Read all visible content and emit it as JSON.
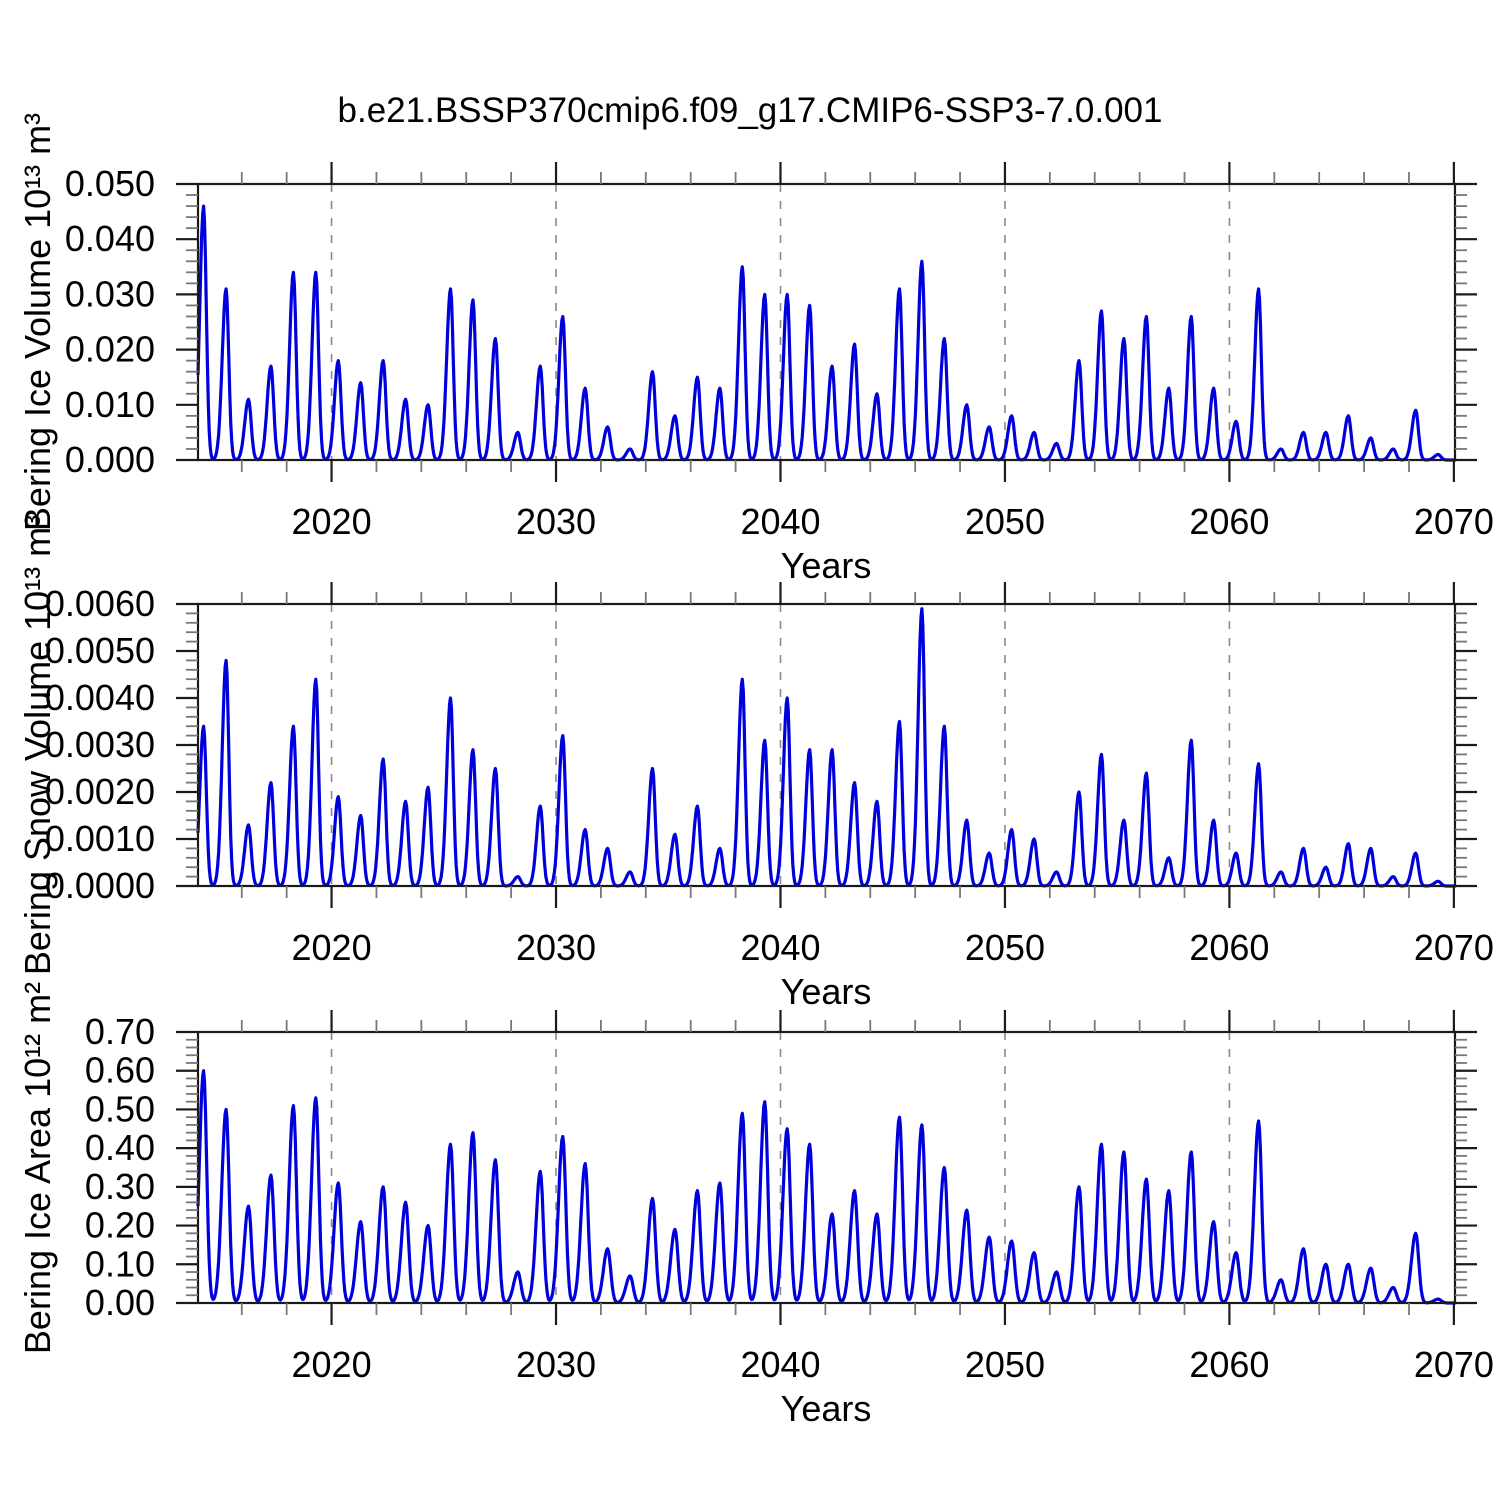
{
  "title": "b.e21.BSSP370cmip6.f09_g17.CMIP6-SSP3-7.0.001",
  "line_color": "#0000dd",
  "frame_color": "#1a1a1a",
  "grid_color": "#8a8a8a",
  "minor_tick_color": "#777777",
  "chart_data": [
    {
      "type": "line",
      "ylabel": "Bering Ice Volume 10¹³ m³",
      "xlabel": "Years",
      "xlim": [
        2014.05,
        2070.05
      ],
      "ylim": [
        0,
        0.05
      ],
      "xtick_labels": [
        "2020",
        "2030",
        "2040",
        "2050",
        "2060",
        "2070"
      ],
      "x_minor_step": 2,
      "ytick_labels": [
        "0.000",
        "0.010",
        "0.020",
        "0.030",
        "0.040",
        "0.050"
      ],
      "y_minor_step": 0.002,
      "grid_lines_x": [
        2020,
        2030,
        2040,
        2050,
        2060
      ],
      "grid_style": "dashed-vertical",
      "legend": "none",
      "shape_hint": "seasonal spikes: near-zero each summer, one winter peak per year",
      "series": [
        {
          "name": "Bering Ice Volume",
          "start_year": 2014,
          "annual_peak_values": [
            0.046,
            0.031,
            0.011,
            0.017,
            0.034,
            0.034,
            0.018,
            0.014,
            0.018,
            0.011,
            0.01,
            0.031,
            0.029,
            0.022,
            0.005,
            0.017,
            0.026,
            0.013,
            0.006,
            0.002,
            0.016,
            0.008,
            0.015,
            0.013,
            0.035,
            0.03,
            0.03,
            0.028,
            0.017,
            0.021,
            0.012,
            0.031,
            0.036,
            0.022,
            0.01,
            0.006,
            0.008,
            0.005,
            0.003,
            0.018,
            0.027,
            0.022,
            0.026,
            0.013,
            0.026,
            0.013,
            0.007,
            0.031,
            0.002,
            0.005,
            0.005,
            0.008,
            0.004,
            0.002,
            0.009,
            0.001
          ]
        }
      ]
    },
    {
      "type": "line",
      "ylabel": "Bering Snow Volume 10¹³ m³",
      "xlabel": "Years",
      "xlim": [
        2014.05,
        2070.05
      ],
      "ylim": [
        0,
        0.006
      ],
      "xtick_labels": [
        "2020",
        "2030",
        "2040",
        "2050",
        "2060",
        "2070"
      ],
      "x_minor_step": 2,
      "ytick_labels": [
        "0.0000",
        "0.0010",
        "0.0020",
        "0.0030",
        "0.0040",
        "0.0050",
        "0.0060"
      ],
      "y_minor_step": 0.0002,
      "grid_lines_x": [
        2020,
        2030,
        2040,
        2050,
        2060
      ],
      "grid_style": "dashed-vertical",
      "legend": "none",
      "shape_hint": "seasonal spikes: near-zero each summer, one winter peak per year",
      "series": [
        {
          "name": "Bering Snow Volume",
          "start_year": 2014,
          "annual_peak_values": [
            0.0034,
            0.0048,
            0.0013,
            0.0022,
            0.0034,
            0.0044,
            0.0019,
            0.0015,
            0.0027,
            0.0018,
            0.0021,
            0.004,
            0.0029,
            0.0025,
            0.0002,
            0.0017,
            0.0032,
            0.0012,
            0.0008,
            0.0003,
            0.0025,
            0.0011,
            0.0017,
            0.0008,
            0.0044,
            0.0031,
            0.004,
            0.0029,
            0.0029,
            0.0022,
            0.0018,
            0.0035,
            0.0059,
            0.0034,
            0.0014,
            0.0007,
            0.0012,
            0.001,
            0.0003,
            0.002,
            0.0028,
            0.0014,
            0.0024,
            0.0006,
            0.0031,
            0.0014,
            0.0007,
            0.0026,
            0.0003,
            0.0008,
            0.0004,
            0.0009,
            0.0008,
            0.0002,
            0.0007,
            0.0001
          ]
        }
      ]
    },
    {
      "type": "line",
      "ylabel": "Bering Ice Area 10¹² m²",
      "xlabel": "Years",
      "xlim": [
        2014.05,
        2070.05
      ],
      "ylim": [
        0,
        0.7
      ],
      "xtick_labels": [
        "2020",
        "2030",
        "2040",
        "2050",
        "2060",
        "2070"
      ],
      "x_minor_step": 2,
      "ytick_labels": [
        "0.00",
        "0.10",
        "0.20",
        "0.30",
        "0.40",
        "0.50",
        "0.60",
        "0.70"
      ],
      "y_minor_step": 0.02,
      "grid_lines_x": [
        2020,
        2030,
        2040,
        2050,
        2060
      ],
      "grid_style": "dashed-vertical",
      "legend": "none",
      "shape_hint": "seasonal spikes: near-zero each summer, one winter peak per year",
      "series": [
        {
          "name": "Bering Ice Area",
          "start_year": 2014,
          "annual_peak_values": [
            0.6,
            0.5,
            0.25,
            0.33,
            0.51,
            0.53,
            0.31,
            0.21,
            0.3,
            0.26,
            0.2,
            0.41,
            0.44,
            0.37,
            0.08,
            0.34,
            0.43,
            0.36,
            0.14,
            0.07,
            0.27,
            0.19,
            0.29,
            0.31,
            0.49,
            0.52,
            0.45,
            0.41,
            0.23,
            0.29,
            0.23,
            0.48,
            0.46,
            0.35,
            0.24,
            0.17,
            0.16,
            0.13,
            0.08,
            0.3,
            0.41,
            0.39,
            0.32,
            0.29,
            0.39,
            0.21,
            0.13,
            0.47,
            0.06,
            0.14,
            0.1,
            0.1,
            0.09,
            0.04,
            0.18,
            0.01
          ]
        }
      ]
    }
  ]
}
